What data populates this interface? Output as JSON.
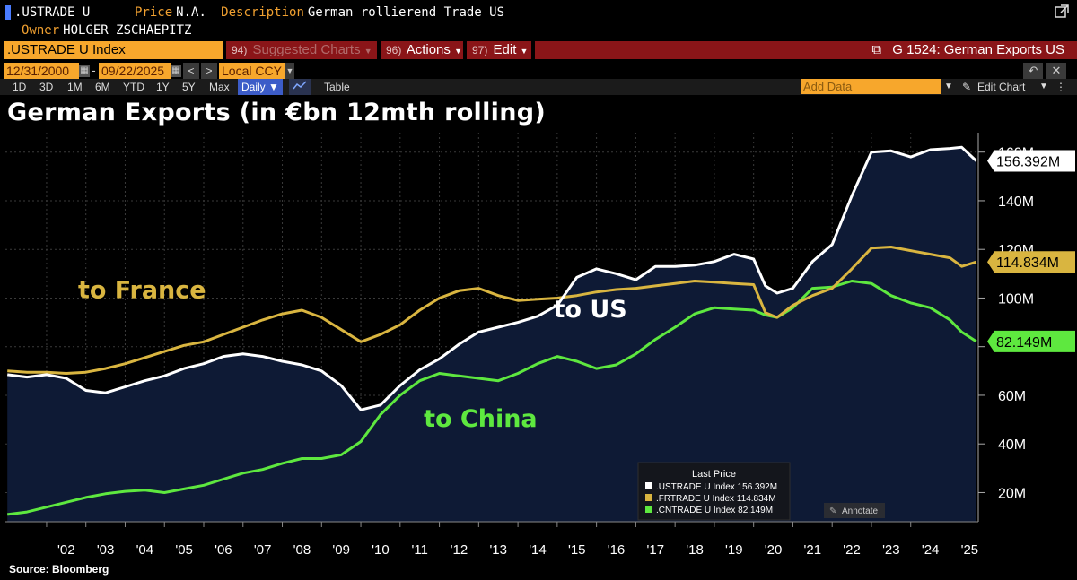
{
  "header": {
    "ticker": ".USTRADE U",
    "price_label": "Price",
    "price_value": "N.A.",
    "description_label": "Description",
    "description_value": "German rollierend Trade US",
    "owner_label": "Owner",
    "owner_value": "HOLGER ZSCHAEPITZ"
  },
  "toolbar": {
    "security": ".USTRADE U Index",
    "suggested_num": "94)",
    "suggested_label": "Suggested Charts",
    "actions_num": "96)",
    "actions_label": "Actions",
    "edit_num": "97)",
    "edit_label": "Edit",
    "launch_label": "G 1524: German Exports US",
    "start_date": "12/31/2000",
    "end_date": "09/22/2025",
    "currency": "Local CCY",
    "ranges": [
      "1D",
      "3D",
      "1M",
      "6M",
      "YTD",
      "1Y",
      "5Y",
      "Max"
    ],
    "frequency": "Daily",
    "table_label": "Table",
    "add_data": "Add Data",
    "edit_chart": "Edit Chart"
  },
  "colors": {
    "orange": "#f7a72c",
    "us": "#ffffff",
    "france": "#d9b540",
    "china": "#5ee83f",
    "area": "#0e1a35"
  },
  "chart_data": {
    "type": "line",
    "title": "German Exports (in €bn 12mth rolling)",
    "xlabel": "",
    "ylabel": "",
    "x_tick_labels": [
      "'02",
      "'03",
      "'04",
      "'05",
      "'06",
      "'07",
      "'08",
      "'09",
      "'10",
      "'11",
      "'12",
      "'13",
      "'14",
      "'15",
      "'16",
      "'17",
      "'18",
      "'19",
      "'20",
      "'21",
      "'22",
      "'23",
      "'24",
      "'25"
    ],
    "y_ticks": [
      20,
      40,
      60,
      80,
      100,
      120,
      140,
      160
    ],
    "y_tick_labels": [
      "20M",
      "40M",
      "60M",
      "80M",
      "100M",
      "120M",
      "140M",
      "160M"
    ],
    "ylim": [
      8,
      168
    ],
    "x_range": [
      2000.95,
      2025.72
    ],
    "series": [
      {
        "name": ".USTRADE U Index",
        "color": "#ffffff",
        "last_value": 156.392,
        "last_label": "156.392M",
        "annotation": "to US",
        "x": [
          2001.0,
          2001.5,
          2002.0,
          2002.5,
          2003.0,
          2003.5,
          2004.0,
          2004.5,
          2005.0,
          2005.5,
          2006.0,
          2006.5,
          2007.0,
          2007.5,
          2008.0,
          2008.5,
          2009.0,
          2009.5,
          2010.0,
          2010.5,
          2011.0,
          2011.5,
          2012.0,
          2012.5,
          2013.0,
          2013.5,
          2014.0,
          2014.5,
          2015.0,
          2015.5,
          2016.0,
          2016.5,
          2017.0,
          2017.5,
          2018.0,
          2018.5,
          2019.0,
          2019.5,
          2020.0,
          2020.3,
          2020.6,
          2021.0,
          2021.5,
          2022.0,
          2022.5,
          2023.0,
          2023.5,
          2024.0,
          2024.5,
          2025.0,
          2025.3,
          2025.67
        ],
        "y": [
          68.5,
          67.5,
          68.5,
          67.0,
          62.0,
          61.0,
          63.5,
          66.0,
          68.0,
          71.0,
          73.0,
          76.0,
          77.0,
          76.0,
          74.0,
          72.5,
          70.0,
          64.0,
          54.0,
          56.0,
          64.0,
          70.5,
          75.0,
          81.0,
          86.0,
          88.0,
          90.0,
          92.5,
          97.0,
          108.5,
          112.0,
          110.0,
          107.5,
          113.0,
          113.0,
          113.5,
          115.0,
          118.0,
          116.0,
          105.0,
          102.0,
          104.0,
          115.0,
          122.0,
          142.0,
          160.0,
          160.5,
          158.0,
          161.0,
          161.5,
          162.0,
          156.392
        ]
      },
      {
        "name": ".FRTRADE U Index",
        "color": "#d9b540",
        "last_value": 114.834,
        "last_label": "114.834M",
        "annotation": "to France",
        "x": [
          2001.0,
          2001.5,
          2002.0,
          2002.5,
          2003.0,
          2003.5,
          2004.0,
          2004.5,
          2005.0,
          2005.5,
          2006.0,
          2006.5,
          2007.0,
          2007.5,
          2008.0,
          2008.5,
          2009.0,
          2009.5,
          2010.0,
          2010.5,
          2011.0,
          2011.5,
          2012.0,
          2012.5,
          2013.0,
          2013.5,
          2014.0,
          2014.5,
          2015.0,
          2015.5,
          2016.0,
          2016.5,
          2017.0,
          2017.5,
          2018.0,
          2018.5,
          2019.0,
          2019.5,
          2020.0,
          2020.3,
          2020.6,
          2021.0,
          2021.5,
          2022.0,
          2022.5,
          2023.0,
          2023.5,
          2024.0,
          2024.5,
          2025.0,
          2025.3,
          2025.67
        ],
        "y": [
          70.0,
          69.5,
          69.5,
          69.0,
          69.5,
          71.0,
          73.0,
          75.5,
          78.0,
          80.5,
          82.0,
          85.0,
          88.0,
          91.0,
          93.5,
          95.0,
          92.0,
          87.0,
          82.0,
          85.0,
          89.0,
          95.0,
          100.0,
          103.0,
          104.0,
          101.0,
          99.0,
          99.5,
          100.0,
          101.0,
          102.5,
          103.5,
          104.0,
          105.0,
          106.0,
          107.0,
          106.5,
          106.0,
          105.5,
          94.0,
          92.0,
          97.0,
          101.0,
          104.0,
          112.0,
          120.5,
          121.0,
          119.5,
          118.0,
          116.5,
          113.0,
          114.834
        ]
      },
      {
        "name": ".CNTRADE U Index",
        "color": "#5ee83f",
        "last_value": 82.149,
        "last_label": "82.149M",
        "annotation": "to China",
        "x": [
          2001.0,
          2001.5,
          2002.0,
          2002.5,
          2003.0,
          2003.5,
          2004.0,
          2004.5,
          2005.0,
          2005.5,
          2006.0,
          2006.5,
          2007.0,
          2007.5,
          2008.0,
          2008.5,
          2009.0,
          2009.5,
          2010.0,
          2010.5,
          2011.0,
          2011.5,
          2012.0,
          2012.5,
          2013.0,
          2013.5,
          2014.0,
          2014.5,
          2015.0,
          2015.5,
          2016.0,
          2016.5,
          2017.0,
          2017.5,
          2018.0,
          2018.5,
          2019.0,
          2019.5,
          2020.0,
          2020.3,
          2020.6,
          2021.0,
          2021.5,
          2022.0,
          2022.5,
          2023.0,
          2023.5,
          2024.0,
          2024.5,
          2025.0,
          2025.3,
          2025.67
        ],
        "y": [
          11.0,
          12.0,
          14.0,
          16.0,
          18.0,
          19.5,
          20.5,
          21.0,
          20.0,
          21.5,
          23.0,
          25.5,
          28.0,
          29.5,
          32.0,
          34.0,
          34.0,
          35.5,
          41.0,
          52.0,
          60.0,
          66.0,
          69.0,
          68.0,
          67.0,
          66.0,
          69.0,
          73.0,
          76.0,
          74.0,
          71.0,
          72.5,
          77.0,
          83.0,
          88.0,
          93.5,
          96.0,
          95.5,
          95.0,
          93.0,
          92.0,
          96.0,
          104.0,
          104.5,
          107.0,
          106.0,
          101.0,
          98.0,
          96.0,
          91.0,
          86.0,
          82.149
        ]
      }
    ],
    "legend": {
      "title": "Last Price",
      "placement": "bottom-right",
      "entries": [
        ".USTRADE U Index 156.392M",
        ".FRTRADE U Index 114.834M",
        ".CNTRADE U Index 82.149M"
      ],
      "annotate_label": "Annotate"
    },
    "grid": true
  },
  "source": "Source: Bloomberg"
}
